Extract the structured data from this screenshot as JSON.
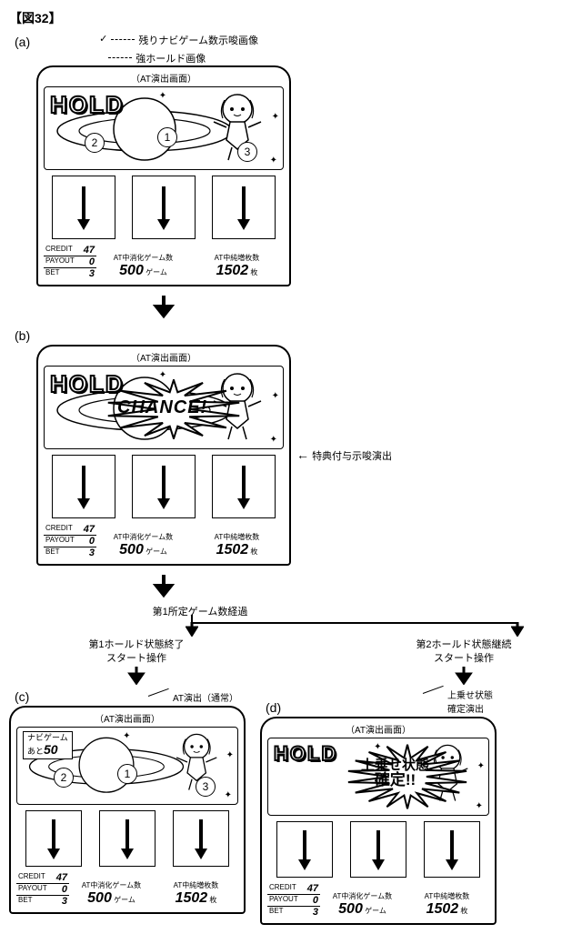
{
  "figure_title": "【図32】",
  "sub_labels": {
    "a": "(a)",
    "b": "(b)",
    "c": "(c)",
    "d": "(d)"
  },
  "annotations": {
    "remaining_navi": "残りナビゲーム数示唆画像",
    "strong_hold": "強ホールド画像",
    "bonus_suggestion": "特典付与示唆演出",
    "first_predetermined": "第1所定ゲーム数経過",
    "branch_left_l1": "第1ホールド状態終了",
    "branch_left_l2": "スタート操作",
    "branch_right_l1": "第2ホールド状態継続",
    "branch_right_l2": "スタート操作",
    "at_normal": "AT演出（通常）",
    "uwanose_callout_l1": "上乗せ状態",
    "uwanose_callout_l2": "確定演出"
  },
  "screen_caption": "（AT演出画面）",
  "hold_label": "HOLD",
  "chance_label": "CHANCE!",
  "uwanose": {
    "line1": "上乗せ状態",
    "line2": "確定!!"
  },
  "navi": {
    "l1": "ナビゲーム",
    "l2_prefix": "あと",
    "l2_num": "50"
  },
  "circle_labels": {
    "c1": "1",
    "c2": "2",
    "c3": "3"
  },
  "credit": {
    "credit_label": "CREDIT",
    "credit_val": "47",
    "payout_label": "PAYOUT",
    "payout_val": "0",
    "bet_label": "BET",
    "bet_val": "3"
  },
  "stats": {
    "games_label": "AT中消化ゲーム数",
    "games_val": "500",
    "games_unit": "ゲーム",
    "net_label": "AT中純増枚数",
    "net_val": "1502",
    "net_unit": "枚"
  },
  "colors": {
    "stroke": "#000000",
    "bg": "#ffffff"
  }
}
